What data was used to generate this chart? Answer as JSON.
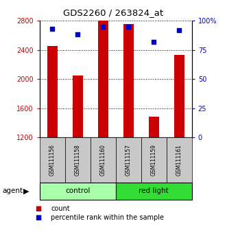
{
  "title": "GDS2260 / 263824_at",
  "samples": [
    "GSM111156",
    "GSM111158",
    "GSM111160",
    "GSM111157",
    "GSM111159",
    "GSM111161"
  ],
  "counts": [
    2450,
    2050,
    2800,
    2750,
    1480,
    2330
  ],
  "percentiles": [
    93,
    88,
    95,
    95,
    82,
    92
  ],
  "ylim_left": [
    1200,
    2800
  ],
  "ylim_right": [
    0,
    100
  ],
  "yticks_left": [
    1200,
    1600,
    2000,
    2400,
    2800
  ],
  "yticks_right": [
    0,
    25,
    50,
    75,
    100
  ],
  "ytick_labels_right": [
    "0",
    "25",
    "50",
    "75",
    "100%"
  ],
  "bar_color": "#cc0000",
  "dot_color": "#0000cc",
  "bar_width": 0.4,
  "groups": [
    {
      "label": "control",
      "start": 0,
      "end": 3,
      "color": "#aaffaa"
    },
    {
      "label": "red light",
      "start": 3,
      "end": 6,
      "color": "#33dd33"
    }
  ],
  "group_row_label": "agent",
  "legend_count_label": "count",
  "legend_percentile_label": "percentile rank within the sample",
  "tick_label_color_left": "#cc0000",
  "tick_label_color_right": "#0000cc",
  "sample_box_color": "#c8c8c8"
}
